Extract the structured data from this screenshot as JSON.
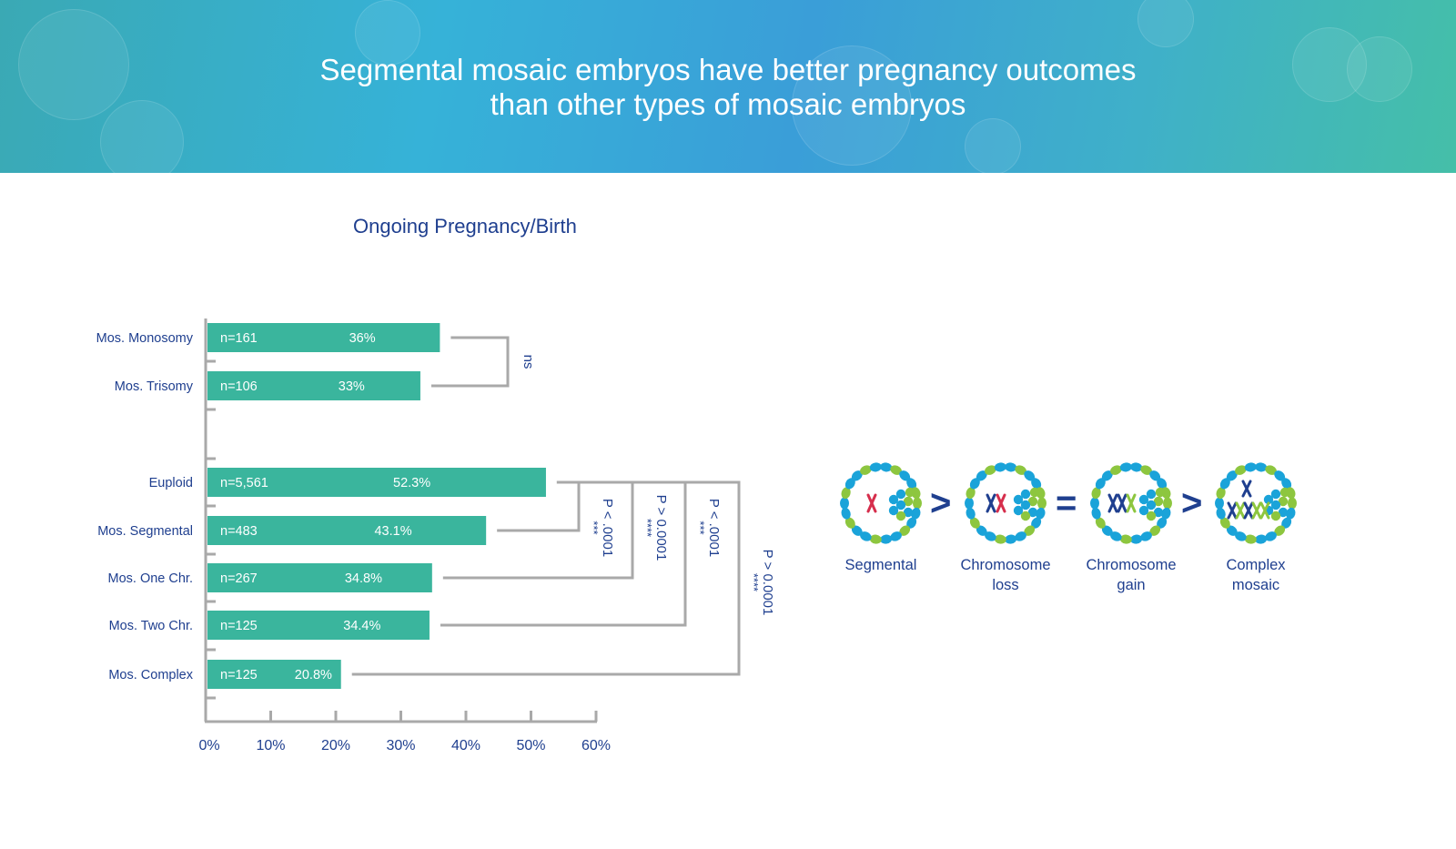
{
  "banner": {
    "title_line1": "Segmental mosaic embryos have better pregnancy outcomes",
    "title_line2": "than other types of mosaic embryos"
  },
  "colors": {
    "bar": "#3ab59d",
    "axis": "#a9a9a9",
    "text_blue": "#1f3f8f",
    "green": "#8dc63f",
    "blue": "#1aa3d9",
    "red": "#d62e4c"
  },
  "chart_data": {
    "type": "bar",
    "orientation": "horizontal",
    "title": "Ongoing Pregnancy/Birth",
    "xlim": [
      0,
      60
    ],
    "xticks": [
      "0%",
      "10%",
      "20%",
      "30%",
      "40%",
      "50%",
      "60%"
    ],
    "groups": [
      {
        "bars": [
          {
            "label": "Mos. Monosomy",
            "n": "n=161",
            "value": 36,
            "value_label": "36%"
          },
          {
            "label": "Mos. Trisomy",
            "n": "n=106",
            "value": 33,
            "value_label": "33%"
          }
        ]
      },
      {
        "bars": [
          {
            "label": "Euploid",
            "n": "n=5,561",
            "value": 52.3,
            "value_label": "52.3%"
          },
          {
            "label": "Mos. Segmental",
            "n": "n=483",
            "value": 43.1,
            "value_label": "43.1%"
          },
          {
            "label": "Mos. One Chr.",
            "n": "n=267",
            "value": 34.8,
            "value_label": "34.8%"
          },
          {
            "label": "Mos. Two Chr.",
            "n": "n=125",
            "value": 34.4,
            "value_label": "34.4%"
          },
          {
            "label": "Mos. Complex",
            "n": "n=125",
            "value": 20.8,
            "value_label": "20.8%"
          }
        ]
      }
    ],
    "comparisons": [
      {
        "from": "Mos. Monosomy",
        "to": "Mos. Trisomy",
        "p": "ns",
        "stars": ""
      },
      {
        "from": "Euploid",
        "to": "Mos. Segmental",
        "p": "P < .0001",
        "stars": "***"
      },
      {
        "from": "Euploid",
        "to": "Mos. One Chr.",
        "p": "P > 0.0001",
        "stars": "****"
      },
      {
        "from": "Euploid",
        "to": "Mos. Two Chr.",
        "p": "P < .0001",
        "stars": "***"
      },
      {
        "from": "Euploid",
        "to": "Mos. Complex",
        "p": "P > 0.0001",
        "stars": "****"
      }
    ]
  },
  "diagram": {
    "items": [
      {
        "label_line1": "Segmental",
        "label_line2": "",
        "icon": "segmental-embryo-icon"
      },
      {
        "label_line1": "Chromosome",
        "label_line2": "loss",
        "icon": "chromosome-loss-embryo-icon"
      },
      {
        "label_line1": "Chromosome",
        "label_line2": "gain",
        "icon": "chromosome-gain-embryo-icon"
      },
      {
        "label_line1": "Complex",
        "label_line2": "mosaic",
        "icon": "complex-mosaic-embryo-icon"
      }
    ],
    "operators": [
      ">",
      "=",
      ">"
    ]
  }
}
